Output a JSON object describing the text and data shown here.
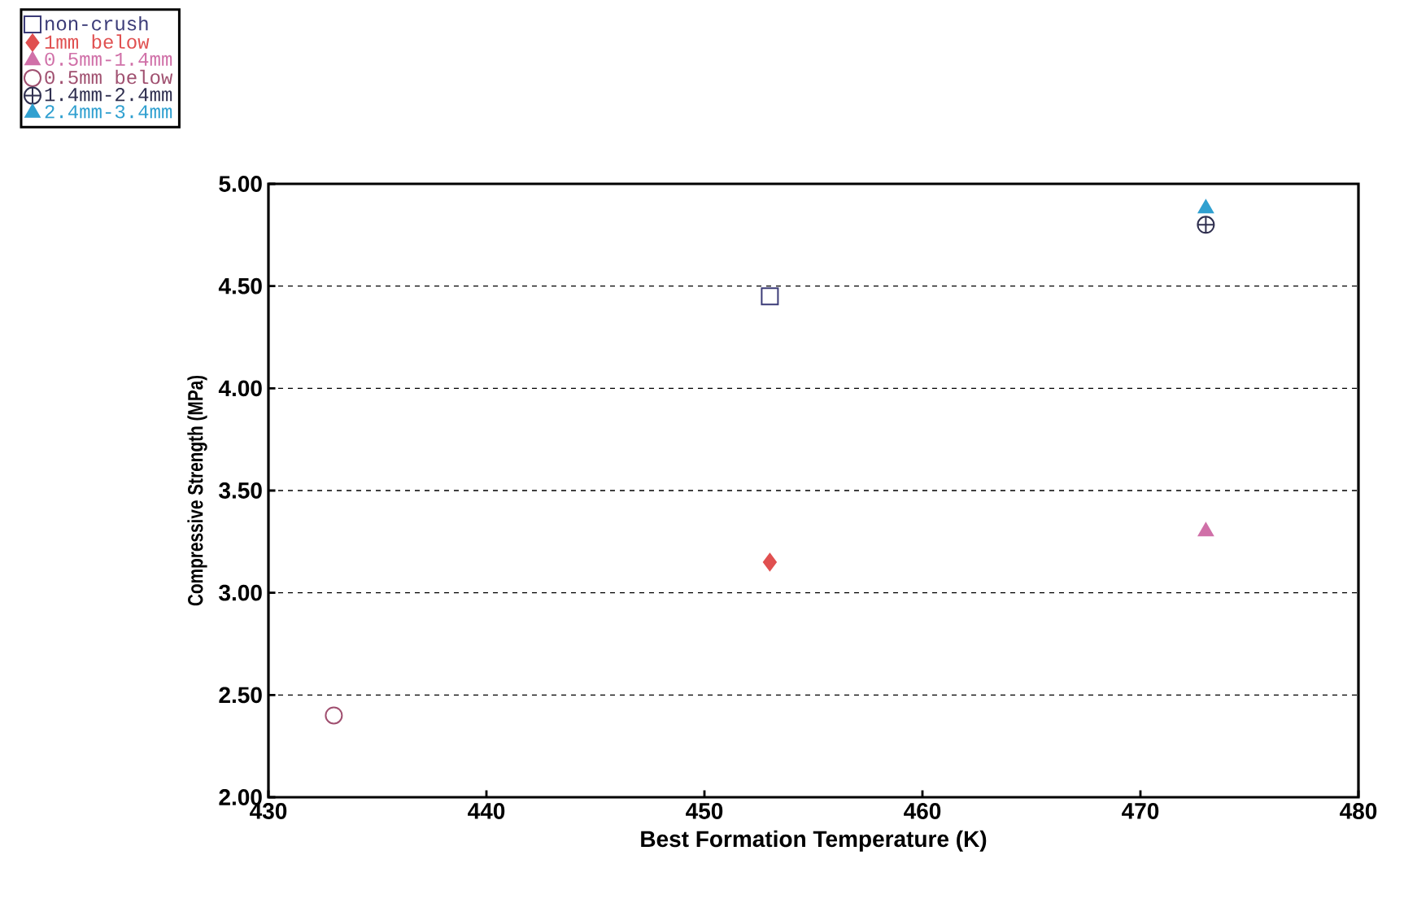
{
  "chart_data": {
    "type": "scatter",
    "xlabel": "Best Formation Temperature (K)",
    "ylabel": "Compressive Strength (MPa)",
    "xlim": [
      430,
      480
    ],
    "xticks": [
      430,
      440,
      450,
      460,
      470,
      480
    ],
    "ylim": [
      2,
      5
    ],
    "yticks": [
      {
        "value": 2,
        "label": "2.00"
      },
      {
        "value": 2.5,
        "label": "2.50"
      },
      {
        "value": 3,
        "label": "3.00"
      },
      {
        "value": 3.5,
        "label": "3.50"
      },
      {
        "value": 4,
        "label": "4.00"
      },
      {
        "value": 4.5,
        "label": "4.50"
      },
      {
        "value": 5,
        "label": "5.00"
      }
    ],
    "grid": "y",
    "legend": "top left",
    "series": [
      {
        "name": "non-crush",
        "color": "#3c3c78",
        "marker": "square",
        "x": [
          453
        ],
        "values": [
          4.45
        ]
      },
      {
        "name": "1mm below",
        "color": "#e05050",
        "marker": "diamond",
        "x": [
          453
        ],
        "values": [
          3.15
        ]
      },
      {
        "name": "0.5mm-1.4mm",
        "color": "#d070a8",
        "marker": "triangle",
        "x": [
          473
        ],
        "values": [
          3.3
        ]
      },
      {
        "name": "0.5mm below",
        "color": "#a05070",
        "marker": "circle",
        "x": [
          433
        ],
        "values": [
          2.4
        ]
      },
      {
        "name": "1.4mm-2.4mm",
        "color": "#303050",
        "marker": "cross",
        "x": [
          473
        ],
        "values": [
          4.8
        ]
      },
      {
        "name": "2.4mm-3.4mm",
        "color": "#30a0d0",
        "marker": "triangle",
        "x": [
          473
        ],
        "values": [
          4.88
        ]
      }
    ]
  }
}
